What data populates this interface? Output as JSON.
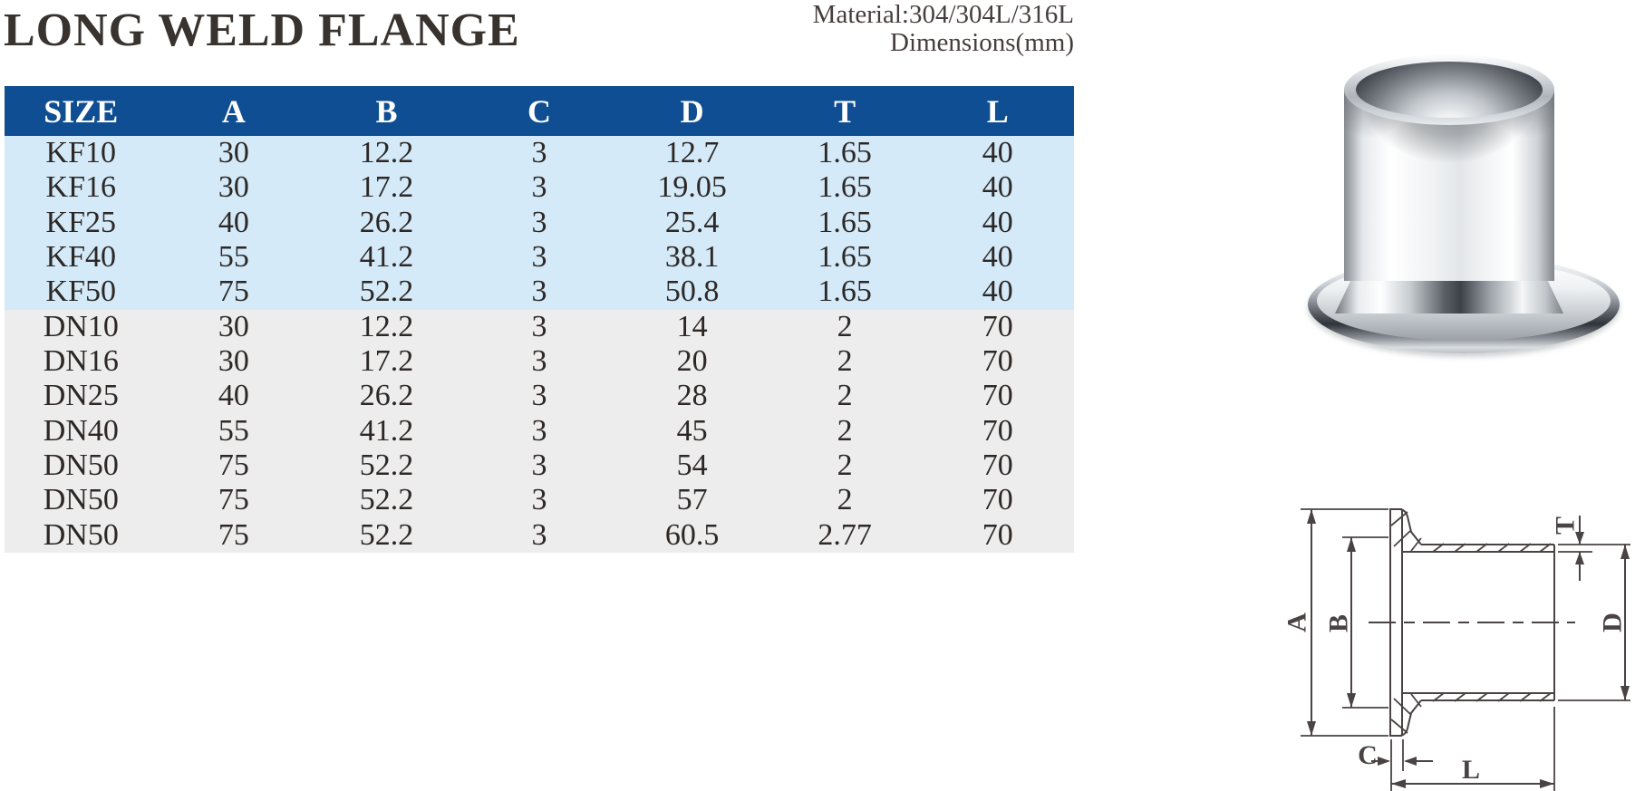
{
  "page": {
    "title": "LONG WELD FLANGE",
    "material_line": "Material:304/304L/316L",
    "dimensions_line": "Dimensions(mm)"
  },
  "table": {
    "columns": [
      "SIZE",
      "A",
      "B",
      "C",
      "D",
      "T",
      "L"
    ],
    "rows": [
      {
        "group": "kf",
        "cells": [
          "KF10",
          "30",
          "12.2",
          "3",
          "12.7",
          "1.65",
          "40"
        ]
      },
      {
        "group": "kf",
        "cells": [
          "KF16",
          "30",
          "17.2",
          "3",
          "19.05",
          "1.65",
          "40"
        ]
      },
      {
        "group": "kf",
        "cells": [
          "KF25",
          "40",
          "26.2",
          "3",
          "25.4",
          "1.65",
          "40"
        ]
      },
      {
        "group": "kf",
        "cells": [
          "KF40",
          "55",
          "41.2",
          "3",
          "38.1",
          "1.65",
          "40"
        ]
      },
      {
        "group": "kf",
        "cells": [
          "KF50",
          "75",
          "52.2",
          "3",
          "50.8",
          "1.65",
          "40"
        ]
      },
      {
        "group": "dn",
        "cells": [
          "DN10",
          "30",
          "12.2",
          "3",
          "14",
          "2",
          "70"
        ]
      },
      {
        "group": "dn",
        "cells": [
          "DN16",
          "30",
          "17.2",
          "3",
          "20",
          "2",
          "70"
        ]
      },
      {
        "group": "dn",
        "cells": [
          "DN25",
          "40",
          "26.2",
          "3",
          "28",
          "2",
          "70"
        ]
      },
      {
        "group": "dn",
        "cells": [
          "DN40",
          "55",
          "41.2",
          "3",
          "45",
          "2",
          "70"
        ]
      },
      {
        "group": "dn",
        "cells": [
          "DN50",
          "75",
          "52.2",
          "3",
          "54",
          "2",
          "70"
        ]
      },
      {
        "group": "dn",
        "cells": [
          "DN50",
          "75",
          "52.2",
          "3",
          "57",
          "2",
          "70"
        ]
      },
      {
        "group": "dn",
        "cells": [
          "DN50",
          "75",
          "52.2",
          "3",
          "60.5",
          "2.77",
          "70"
        ]
      }
    ]
  },
  "drawing": {
    "label_a": "A",
    "label_b": "B",
    "label_c": "C",
    "label_d": "D",
    "label_t": "T",
    "label_l": "L"
  },
  "colors": {
    "header_bg": "#0f4e92",
    "kf_row_bg": "#d4eaf8",
    "dn_row_bg": "#ededed",
    "drawing_line": "#4a4343"
  }
}
